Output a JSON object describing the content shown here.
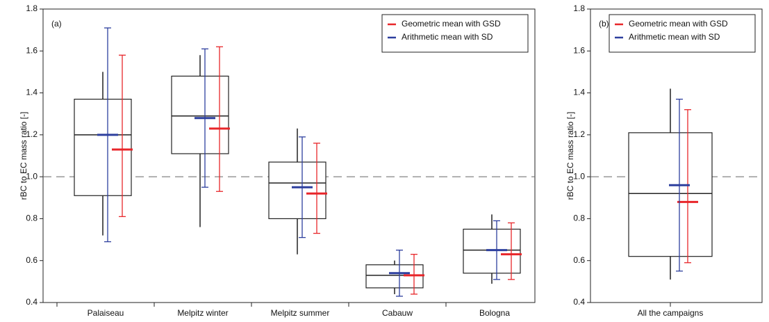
{
  "chart_data": [
    {
      "type": "box",
      "label": "(a)",
      "ylabel": "rBC to EC mass ratio [-]",
      "categories": [
        "Palaiseau",
        "Melpitz winter",
        "Melpitz summer",
        "Cabauw",
        "Bologna"
      ],
      "box": {
        "whisker_low": [
          0.72,
          0.76,
          0.63,
          0.44,
          0.49
        ],
        "q1": [
          0.91,
          1.11,
          0.8,
          0.47,
          0.54
        ],
        "median": [
          1.2,
          1.29,
          0.97,
          0.53,
          0.65
        ],
        "q3": [
          1.37,
          1.48,
          1.07,
          0.58,
          0.75
        ],
        "whisker_high": [
          1.5,
          1.58,
          1.23,
          0.6,
          0.82
        ],
        "color": "#222222"
      },
      "series": [
        {
          "name": "Geometric mean with GSD",
          "color": "#e8262a",
          "values": [
            1.13,
            1.23,
            0.92,
            0.53,
            0.63
          ],
          "lower": [
            0.81,
            0.93,
            0.73,
            0.44,
            0.51
          ],
          "upper": [
            1.58,
            1.62,
            1.16,
            0.63,
            0.78
          ]
        },
        {
          "name": "Arithmetic mean with SD",
          "color": "#2d3f9e",
          "values": [
            1.2,
            1.28,
            0.95,
            0.54,
            0.65
          ],
          "lower": [
            0.69,
            0.95,
            0.71,
            0.43,
            0.51
          ],
          "upper": [
            1.71,
            1.61,
            1.19,
            0.65,
            0.79
          ]
        }
      ],
      "reference_line": 1,
      "ylim": [
        0.4,
        1.8
      ],
      "yticks": [
        0.4,
        0.6,
        0.8,
        {
          "value": 1,
          "label": "1.0"
        },
        1.2,
        1.4,
        1.6,
        1.8
      ],
      "legend": "upper right"
    },
    {
      "type": "box",
      "label": "(b)",
      "ylabel": "rBC to EC mass ratio [-]",
      "categories": [
        "All the campaigns"
      ],
      "box": {
        "whisker_low": [
          0.51
        ],
        "q1": [
          0.62
        ],
        "median": [
          0.92
        ],
        "q3": [
          1.21
        ],
        "whisker_high": [
          1.42
        ],
        "color": "#222222"
      },
      "series": [
        {
          "name": "Geometric mean with GSD",
          "color": "#e8262a",
          "values": [
            0.88
          ],
          "lower": [
            0.59
          ],
          "upper": [
            1.32
          ]
        },
        {
          "name": "Arithmetic mean with SD",
          "color": "#2d3f9e",
          "values": [
            0.96
          ],
          "lower": [
            0.55
          ],
          "upper": [
            1.37
          ]
        }
      ],
      "reference_line": 1,
      "ylim": [
        0.4,
        1.8
      ],
      "yticks": [
        0.4,
        0.6,
        0.8,
        {
          "value": 1,
          "label": "1.0"
        },
        1.2,
        1.4,
        1.6,
        1.8
      ],
      "legend": "upper right"
    }
  ]
}
